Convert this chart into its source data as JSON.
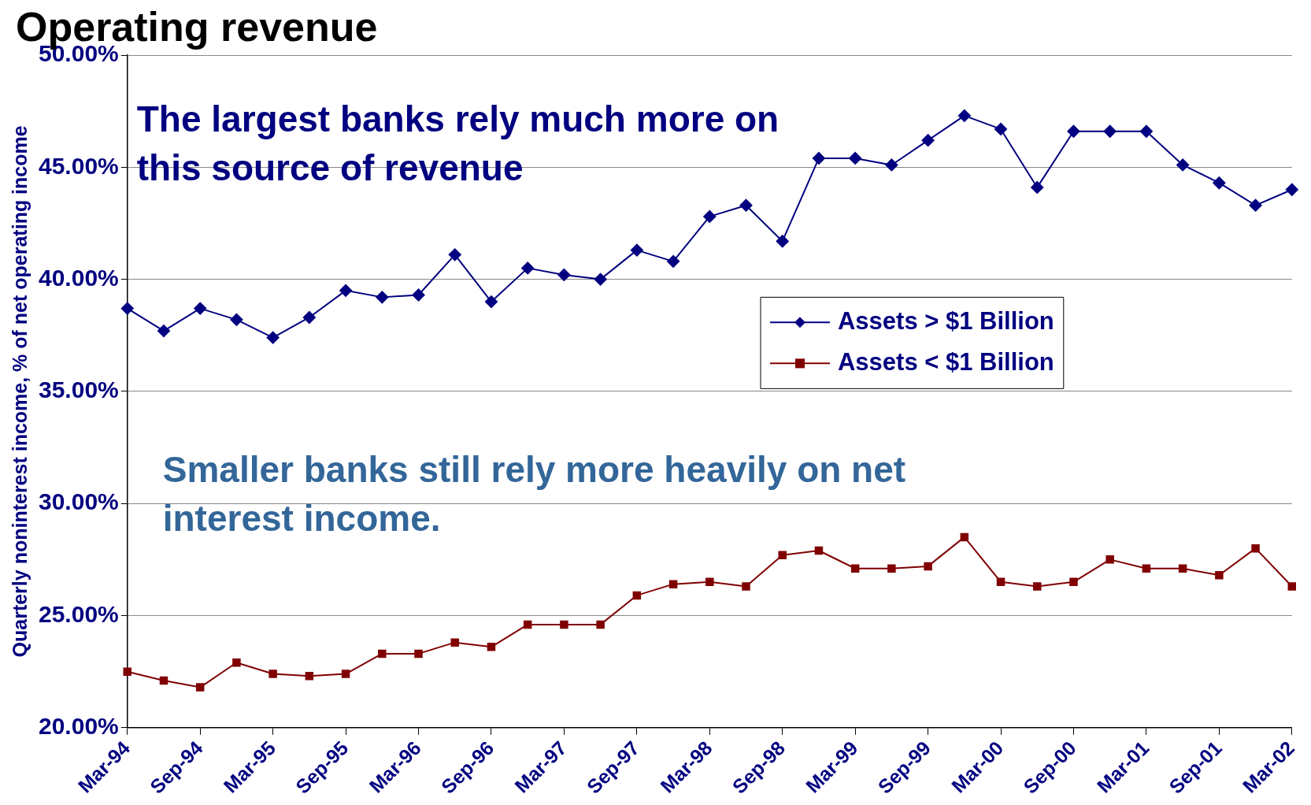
{
  "chart_data": {
    "type": "line",
    "title": "Operating revenue",
    "ylabel": "Quarterly noninterest income, % of net operating income",
    "categories": [
      "Mar-94",
      null,
      "Sep-94",
      null,
      "Mar-95",
      null,
      "Sep-95",
      null,
      "Mar-96",
      null,
      "Sep-96",
      null,
      "Mar-97",
      null,
      "Sep-97",
      null,
      "Mar-98",
      null,
      "Sep-98",
      null,
      "Mar-99",
      null,
      "Sep-99",
      null,
      "Mar-00",
      null,
      "Sep-00",
      null,
      "Mar-01",
      null,
      "Sep-01",
      null,
      "Mar-02"
    ],
    "series": [
      {
        "name": "Assets > $1 Billion",
        "color": "#000080",
        "marker": "diamond",
        "values": [
          38.7,
          37.7,
          38.7,
          38.2,
          37.4,
          38.3,
          39.5,
          39.2,
          39.3,
          41.1,
          39.0,
          40.5,
          40.2,
          40.0,
          41.3,
          40.8,
          42.8,
          43.3,
          41.7,
          45.4,
          45.4,
          45.1,
          46.2,
          47.3,
          46.7,
          44.1,
          46.6,
          46.6,
          46.6,
          45.1,
          44.3,
          43.3,
          44.0
        ]
      },
      {
        "name": "Assets < $1 Billion",
        "color": "#800000",
        "marker": "square",
        "values": [
          22.5,
          22.1,
          21.8,
          22.9,
          22.4,
          22.3,
          22.4,
          23.3,
          23.3,
          23.8,
          23.6,
          24.6,
          24.6,
          24.6,
          25.9,
          26.4,
          26.5,
          26.3,
          27.7,
          27.9,
          27.1,
          27.1,
          27.2,
          28.5,
          26.5,
          26.3,
          26.5,
          27.5,
          27.1,
          27.1,
          26.8,
          28.0,
          26.3
        ]
      }
    ],
    "ylim": [
      20,
      50
    ],
    "yticks": [
      {
        "value": 20,
        "label": "20.00%"
      },
      {
        "value": 25,
        "label": "25.00%"
      },
      {
        "value": 30,
        "label": "30.00%"
      },
      {
        "value": 35,
        "label": "35.00%"
      },
      {
        "value": 40,
        "label": "40.00%"
      },
      {
        "value": 45,
        "label": "45.00%"
      },
      {
        "value": 50,
        "label": "50.00%"
      }
    ],
    "grid": "y",
    "legend": "right",
    "line_style": "solid",
    "annotations": [
      "The largest banks rely much more on this source of revenue",
      "Smaller banks still rely more heavily on net interest income."
    ]
  }
}
